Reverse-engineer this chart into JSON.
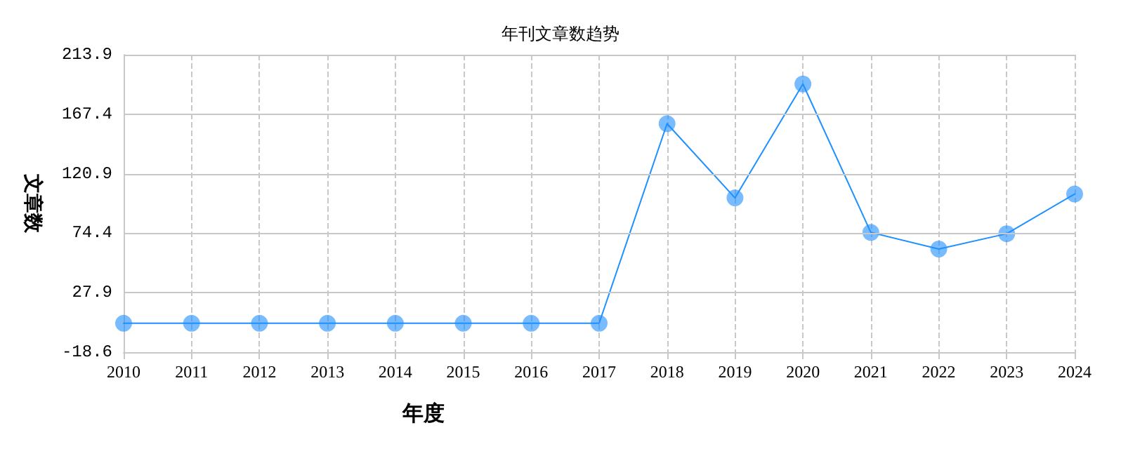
{
  "chart_data": {
    "type": "line",
    "title": "年刊文章数趋势",
    "xlabel": "年度",
    "ylabel": "文章数",
    "categories": [
      "2010",
      "2011",
      "2012",
      "2013",
      "2014",
      "2015",
      "2016",
      "2017",
      "2018",
      "2019",
      "2020",
      "2021",
      "2022",
      "2023",
      "2024"
    ],
    "series": [
      {
        "color": "#1e90ff",
        "values": [
          4,
          4,
          4,
          4,
          4,
          4,
          4,
          4,
          160,
          102,
          191,
          75,
          62,
          74,
          105
        ]
      }
    ],
    "ylim": [
      -18.6,
      213.9
    ],
    "yticks": [
      -18.6,
      27.9,
      74.4,
      120.9,
      167.4,
      213.9
    ],
    "grid": true,
    "marker": "circle"
  }
}
